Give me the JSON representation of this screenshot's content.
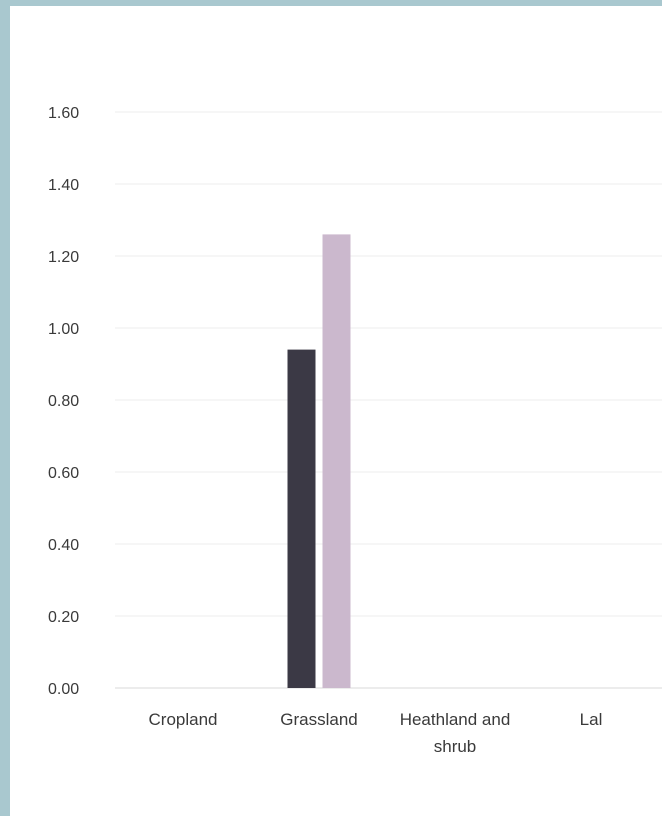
{
  "chart_data": {
    "type": "bar",
    "categories": [
      "Cropland",
      "Grassland",
      "Heathland and shrub",
      "Lal"
    ],
    "category_lines": [
      [
        "Cropland"
      ],
      [
        "Grassland"
      ],
      [
        "Heathland and",
        "shrub"
      ],
      [
        "Lal"
      ]
    ],
    "series": [
      {
        "values": [
          0,
          0.94,
          0,
          0
        ],
        "color": "#3b3945"
      },
      {
        "values": [
          0,
          1.26,
          0,
          0
        ],
        "color": "#cbb8cd"
      }
    ],
    "y_ticks": [
      "0.00",
      "0.20",
      "0.40",
      "0.60",
      "0.80",
      "1.00",
      "1.20",
      "1.40",
      "1.60"
    ],
    "ylim": [
      0,
      1.6
    ],
    "grid": true,
    "title": "",
    "xlabel": "",
    "ylabel": ""
  }
}
